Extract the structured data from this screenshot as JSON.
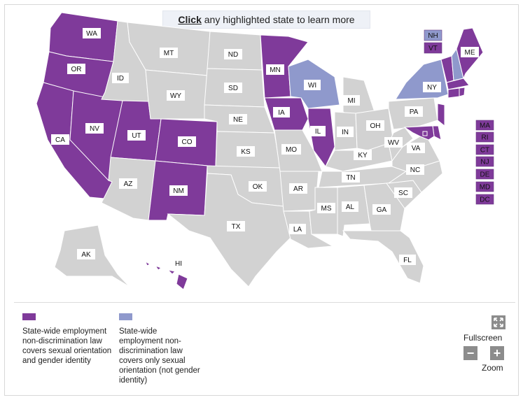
{
  "banner": {
    "link": "Click",
    "rest": " any highlighted state to learn more"
  },
  "colors": {
    "full": "#7f3a9a",
    "partial": "#8f99cc",
    "none": "#d2d2d2",
    "border": "#ffffff"
  },
  "states": {
    "WA": {
      "label": "WA",
      "status": "full"
    },
    "OR": {
      "label": "OR",
      "status": "full"
    },
    "CA": {
      "label": "CA",
      "status": "full"
    },
    "NV": {
      "label": "NV",
      "status": "full"
    },
    "UT": {
      "label": "UT",
      "status": "full"
    },
    "CO": {
      "label": "CO",
      "status": "full"
    },
    "NM": {
      "label": "NM",
      "status": "full"
    },
    "MN": {
      "label": "MN",
      "status": "full"
    },
    "IA": {
      "label": "IA",
      "status": "full"
    },
    "IL": {
      "label": "IL",
      "status": "full"
    },
    "WI": {
      "label": "WI",
      "status": "partial"
    },
    "NY": {
      "label": "NY",
      "status": "partial"
    },
    "ME": {
      "label": "ME",
      "status": "full"
    },
    "HI": {
      "label": "HI",
      "status": "full"
    },
    "MT": {
      "label": "MT",
      "status": "none"
    },
    "ID": {
      "label": "ID",
      "status": "none"
    },
    "WY": {
      "label": "WY",
      "status": "none"
    },
    "ND": {
      "label": "ND",
      "status": "none"
    },
    "SD": {
      "label": "SD",
      "status": "none"
    },
    "NE": {
      "label": "NE",
      "status": "none"
    },
    "KS": {
      "label": "KS",
      "status": "none"
    },
    "OK": {
      "label": "OK",
      "status": "none"
    },
    "TX": {
      "label": "TX",
      "status": "none"
    },
    "AZ": {
      "label": "AZ",
      "status": "none"
    },
    "MO": {
      "label": "MO",
      "status": "none"
    },
    "AR": {
      "label": "AR",
      "status": "none"
    },
    "LA": {
      "label": "LA",
      "status": "none"
    },
    "MI": {
      "label": "MI",
      "status": "none"
    },
    "IN": {
      "label": "IN",
      "status": "none"
    },
    "OH": {
      "label": "OH",
      "status": "none"
    },
    "KY": {
      "label": "KY",
      "status": "none"
    },
    "TN": {
      "label": "TN",
      "status": "none"
    },
    "MS": {
      "label": "MS",
      "status": "none"
    },
    "AL": {
      "label": "AL",
      "status": "none"
    },
    "GA": {
      "label": "GA",
      "status": "none"
    },
    "FL": {
      "label": "FL",
      "status": "none"
    },
    "SC": {
      "label": "SC",
      "status": "none"
    },
    "NC": {
      "label": "NC",
      "status": "none"
    },
    "VA": {
      "label": "VA",
      "status": "none"
    },
    "WV": {
      "label": "WV",
      "status": "none"
    },
    "PA": {
      "label": "PA",
      "status": "none"
    },
    "AK": {
      "label": "AK",
      "status": "none"
    },
    "VT": {
      "label": "VT",
      "status": "full"
    },
    "NH": {
      "label": "NH",
      "status": "partial"
    },
    "MA": {
      "label": "MA",
      "status": "full"
    },
    "RI": {
      "label": "RI",
      "status": "full"
    },
    "CT": {
      "label": "CT",
      "status": "full"
    },
    "NJ": {
      "label": "NJ",
      "status": "full"
    },
    "DE": {
      "label": "DE",
      "status": "full"
    },
    "MD": {
      "label": "MD",
      "status": "full"
    },
    "DC": {
      "label": "DC",
      "status": "full"
    }
  },
  "legend": {
    "full": "State-wide employment non-discrimination law covers sexual orientation and gender identity",
    "partial": "State-wide employment non-discrimination law covers only sexual orientation (not gender identity)"
  },
  "controls": {
    "fullscreen": "Fullscreen",
    "zoom": "Zoom",
    "zoom_out": "−",
    "zoom_in": "+"
  }
}
